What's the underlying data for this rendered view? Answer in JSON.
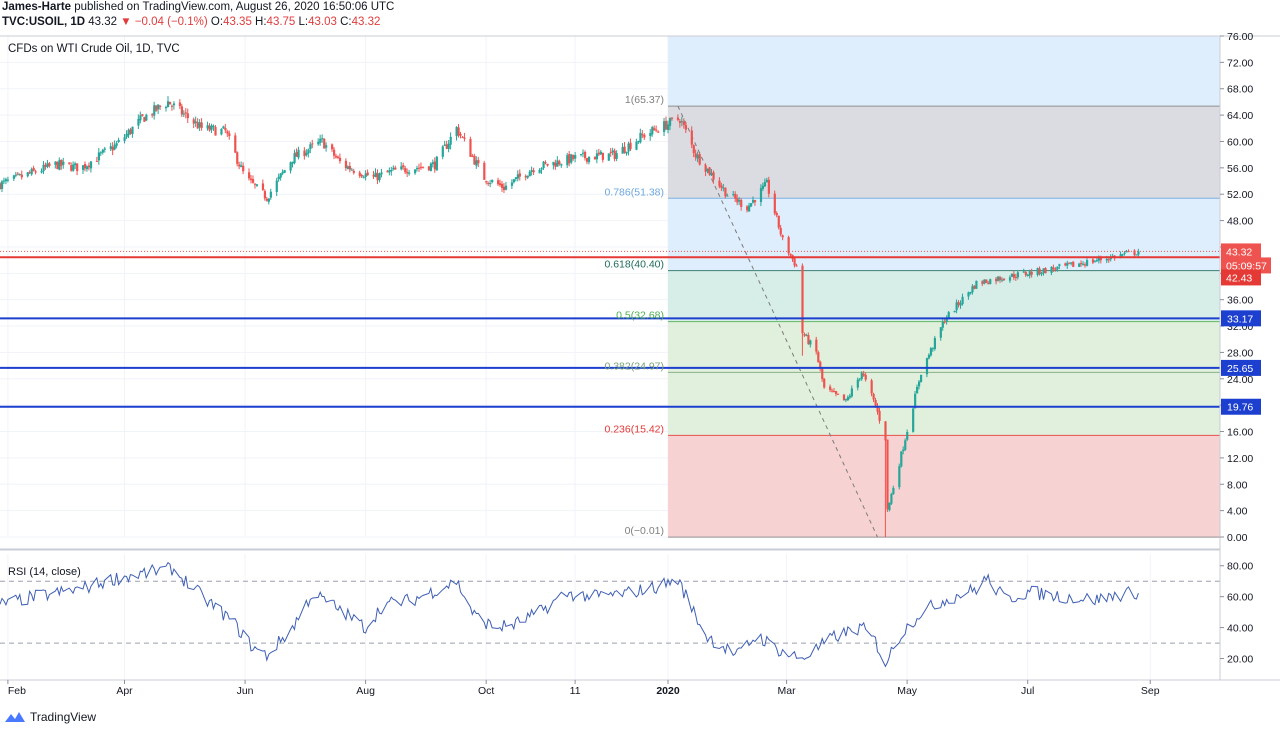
{
  "header": {
    "author": "James-Harte",
    "published": "published on TradingView.com, August 26, 2020 16:50:06 UTC",
    "symbol": "TVC:USOIL, 1D",
    "last": "43.32",
    "change": "▼ −0.04 (−0.1%)",
    "o_label": "O:",
    "o": "43.35",
    "h_label": "H:",
    "h": "43.75",
    "l_label": "L:",
    "l": "43.03",
    "c_label": "C:",
    "c": "43.32"
  },
  "footer": {
    "brand": "TradingView"
  },
  "colors": {
    "up": "#26a69a",
    "down": "#ef5350",
    "rsi": "#3f5fb5",
    "support": "#1c3fcf",
    "resistance": "#e53935",
    "fib_top": "#dadce2",
    "fib_upper": "#dfeefc",
    "fib_mid": "#d7ede8",
    "fib_low": "#e1f0dc",
    "fib_bottom": "#f6d3d2"
  },
  "chart_data": [
    {
      "type": "candlestick",
      "title": "CFDs on WTI Crude Oil, 1D, TVC",
      "x_tick_labels": [
        "Feb",
        "Apr",
        "Jun",
        "Aug",
        "Oct",
        "11",
        "2020",
        "Mar",
        "May",
        "Jul",
        "Sep"
      ],
      "x_tick_dates": [
        "2019-02-01",
        "2019-04-01",
        "2019-06-01",
        "2019-08-01",
        "2019-10-01",
        "2019-11-15",
        "2020-01-01",
        "2020-03-01",
        "2020-05-01",
        "2020-07-01",
        "2020-09-01"
      ],
      "y_ticks": [
        "76.00",
        "72.00",
        "68.00",
        "64.00",
        "60.00",
        "56.00",
        "52.00",
        "48.00",
        "44.00",
        "40.00",
        "36.00",
        "32.00",
        "28.00",
        "24.00",
        "20.00",
        "16.00",
        "12.00",
        "8.00",
        "4.00",
        "0.00"
      ],
      "ylim": [
        0,
        76
      ],
      "grid": true,
      "price_waypoints": [
        [
          "2019-01-28",
          53.5
        ],
        [
          "2019-02-25",
          56.5
        ],
        [
          "2019-03-10",
          56.0
        ],
        [
          "2019-03-28",
          59.5
        ],
        [
          "2019-04-10",
          63.5
        ],
        [
          "2019-04-23",
          66.0
        ],
        [
          "2019-05-10",
          62.0
        ],
        [
          "2019-05-22",
          61.5
        ],
        [
          "2019-06-01",
          54.5
        ],
        [
          "2019-06-12",
          51.5
        ],
        [
          "2019-06-25",
          57.5
        ],
        [
          "2019-07-10",
          60.0
        ],
        [
          "2019-07-20",
          56.5
        ],
        [
          "2019-08-05",
          54.5
        ],
        [
          "2019-08-15",
          55.5
        ],
        [
          "2019-09-05",
          56.5
        ],
        [
          "2019-09-16",
          62.0
        ],
        [
          "2019-09-30",
          54.5
        ],
        [
          "2019-10-10",
          53.0
        ],
        [
          "2019-10-25",
          56.0
        ],
        [
          "2019-11-15",
          57.5
        ],
        [
          "2019-12-05",
          58.0
        ],
        [
          "2019-12-20",
          61.0
        ],
        [
          "2020-01-07",
          63.5
        ],
        [
          "2020-01-15",
          58.0
        ],
        [
          "2020-01-31",
          52.0
        ],
        [
          "2020-02-10",
          50.0
        ],
        [
          "2020-02-20",
          53.5
        ],
        [
          "2020-02-28",
          45.0
        ],
        [
          "2020-03-06",
          41.0
        ],
        [
          "2020-03-09",
          31.0
        ],
        [
          "2020-03-16",
          28.0
        ],
        [
          "2020-03-20",
          22.5
        ],
        [
          "2020-03-31",
          20.5
        ],
        [
          "2020-04-08",
          25.0
        ],
        [
          "2020-04-15",
          19.9
        ],
        [
          "2020-04-20",
          15.0
        ],
        [
          "2020-04-21",
          4.0
        ],
        [
          "2020-04-28",
          12.5
        ],
        [
          "2020-05-08",
          25.0
        ],
        [
          "2020-05-20",
          33.0
        ],
        [
          "2020-06-05",
          38.5
        ],
        [
          "2020-06-20",
          39.5
        ],
        [
          "2020-07-01",
          40.0
        ],
        [
          "2020-07-20",
          41.0
        ],
        [
          "2020-08-05",
          42.0
        ],
        [
          "2020-08-26",
          43.32
        ]
      ],
      "events": [
        {
          "date": "2020-04-20",
          "low": 0.0
        },
        {
          "date": "2020-03-09",
          "low": 27.5,
          "high": 41.5
        }
      ],
      "last_price": 43.32,
      "price_labels": [
        {
          "value": 43.32,
          "text": "43.32",
          "color": "#ef5350"
        },
        {
          "value": 40.4,
          "text": "05:09:57",
          "color": "#ef5350",
          "offset": 14
        },
        {
          "value": 42.43,
          "text": "42.43",
          "color": "#e53935",
          "offset": 26
        }
      ],
      "horizontal_lines": [
        {
          "value": 42.43,
          "label": "42.43",
          "color": "#e53935"
        },
        {
          "value": 33.17,
          "label": "33.17",
          "color": "#1c3fcf"
        },
        {
          "value": 25.65,
          "label": "25.65",
          "color": "#1c3fcf"
        },
        {
          "value": 19.76,
          "label": "19.76",
          "color": "#1c3fcf"
        }
      ],
      "fibonacci": {
        "start_date": "2020-01-01",
        "end_date": "2020-12-31",
        "trend_from": {
          "date": "2020-01-06",
          "price": 65.37
        },
        "trend_to": {
          "date": "2020-04-16",
          "price": 0.0
        },
        "levels": [
          {
            "ratio": "1",
            "label": "1(65.37)",
            "price": 65.37,
            "color": "#808080"
          },
          {
            "ratio": "0.786",
            "label": "0.786(51.38)",
            "price": 51.38,
            "color": "#6fa8dc"
          },
          {
            "ratio": "0.618",
            "label": "0.618(40.40)",
            "price": 40.4,
            "color": "#1f6b5b"
          },
          {
            "ratio": "0.5",
            "label": "0.5(32.68)",
            "price": 32.68,
            "color": "#4caf50"
          },
          {
            "ratio": "0.382",
            "label": "0.382(24.97)",
            "price": 24.97,
            "color": "#7aa57a"
          },
          {
            "ratio": "0.236",
            "label": "0.236(15.42)",
            "price": 15.42,
            "color": "#e53935"
          },
          {
            "ratio": "0",
            "label": "0(−0.01)",
            "price": -0.01,
            "color": "#808080"
          }
        ]
      }
    },
    {
      "type": "line",
      "title": "RSI (14, close)",
      "ylim": [
        10,
        85
      ],
      "y_ticks": [
        "80.00",
        "60.00",
        "40.00",
        "20.00"
      ],
      "bands": [
        70,
        30
      ],
      "rsi_waypoints": [
        [
          "2019-01-28",
          55
        ],
        [
          "2019-02-15",
          60
        ],
        [
          "2019-03-10",
          65
        ],
        [
          "2019-03-28",
          72
        ],
        [
          "2019-04-15",
          76
        ],
        [
          "2019-04-25",
          78
        ],
        [
          "2019-05-15",
          55
        ],
        [
          "2019-05-25",
          45
        ],
        [
          "2019-06-05",
          27
        ],
        [
          "2019-06-12",
          22
        ],
        [
          "2019-06-25",
          40
        ],
        [
          "2019-07-05",
          62
        ],
        [
          "2019-07-15",
          55
        ],
        [
          "2019-08-01",
          40
        ],
        [
          "2019-08-10",
          55
        ],
        [
          "2019-08-25",
          58
        ],
        [
          "2019-09-16",
          70
        ],
        [
          "2019-09-25",
          48
        ],
        [
          "2019-10-05",
          40
        ],
        [
          "2019-10-15",
          42
        ],
        [
          "2019-10-28",
          50
        ],
        [
          "2019-11-10",
          62
        ],
        [
          "2019-11-25",
          60
        ],
        [
          "2019-12-10",
          62
        ],
        [
          "2019-12-25",
          66
        ],
        [
          "2020-01-06",
          71
        ],
        [
          "2020-01-20",
          35
        ],
        [
          "2020-02-05",
          22
        ],
        [
          "2020-02-15",
          35
        ],
        [
          "2020-02-28",
          24
        ],
        [
          "2020-03-09",
          20
        ],
        [
          "2020-03-16",
          26
        ],
        [
          "2020-03-25",
          34
        ],
        [
          "2020-04-08",
          40
        ],
        [
          "2020-04-15",
          31
        ],
        [
          "2020-04-20",
          17
        ],
        [
          "2020-04-28",
          36
        ],
        [
          "2020-05-08",
          50
        ],
        [
          "2020-05-20",
          58
        ],
        [
          "2020-06-05",
          65
        ],
        [
          "2020-06-10",
          72
        ],
        [
          "2020-06-20",
          58
        ],
        [
          "2020-07-01",
          63
        ],
        [
          "2020-07-20",
          60
        ],
        [
          "2020-08-05",
          58
        ],
        [
          "2020-08-15",
          61
        ],
        [
          "2020-08-26",
          63
        ]
      ]
    }
  ]
}
